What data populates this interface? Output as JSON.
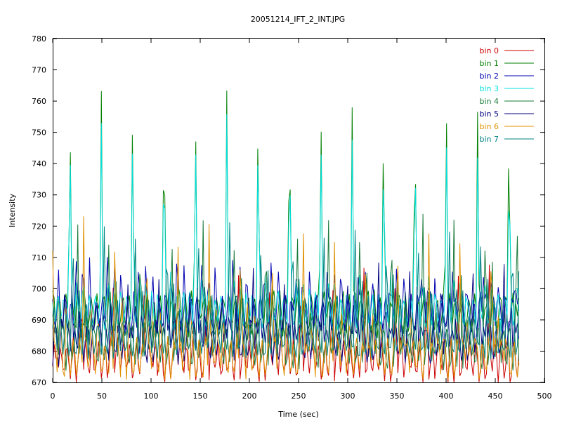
{
  "chart_data": {
    "type": "line",
    "title": "20051214_IFT_2_INT.JPG",
    "xlabel": "Time (sec)",
    "ylabel": "Intensity",
    "xlim": [
      0,
      500
    ],
    "ylim": [
      670,
      780
    ],
    "xticks": [
      0,
      50,
      100,
      150,
      200,
      250,
      300,
      350,
      400,
      450,
      500
    ],
    "yticks": [
      670,
      680,
      690,
      700,
      710,
      720,
      730,
      740,
      750,
      760,
      770,
      780
    ],
    "grid": false,
    "legend_position": "top-right",
    "x_end": 474,
    "period": 31.9,
    "first_peak": 17.5,
    "series": [
      {
        "name": "bin 0",
        "color": "#cc0000",
        "base": 677,
        "amp": 6,
        "peak": 706,
        "offset": 12,
        "lobe": 682
      },
      {
        "name": "bin 1",
        "color": "#008000",
        "base": 692,
        "amp": 6,
        "peak": 770,
        "offset": 0,
        "lobe": 700
      },
      {
        "name": "bin 2",
        "color": "#0000b0",
        "base": 692,
        "amp": 6,
        "peak": 712,
        "offset": 6,
        "lobe": 708
      },
      {
        "name": "bin 3",
        "color": "#00e0e0",
        "base": 693,
        "amp": 5,
        "peak": 751,
        "offset": 0,
        "lobe": 700
      },
      {
        "name": "bin 4",
        "color": "#1a7a3a",
        "base": 682,
        "amp": 7,
        "peak": 725,
        "offset": 8,
        "lobe": 710
      },
      {
        "name": "bin 5",
        "color": "#000080",
        "base": 683,
        "amp": 6,
        "peak": 712,
        "offset": -5,
        "lobe": 706
      },
      {
        "name": "bin 6",
        "color": "#e09000",
        "base": 678,
        "amp": 6,
        "peak": 728,
        "offset": 14,
        "lobe": 698
      },
      {
        "name": "bin 7",
        "color": "#008080",
        "base": 685,
        "amp": 6,
        "peak": 715,
        "offset": 3,
        "lobe": 700
      }
    ]
  }
}
